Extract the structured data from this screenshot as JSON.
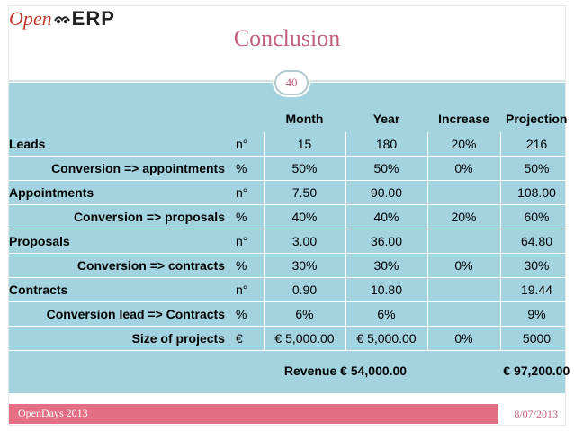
{
  "logo": {
    "open": "Open",
    "erp": "ERP"
  },
  "title": "Conclusion",
  "page_number": "40",
  "table": {
    "headers": [
      "",
      "",
      "Month",
      "Year",
      "Increase",
      "Projection"
    ],
    "rows": [
      {
        "label": "Leads",
        "unit": "n°",
        "month": "15",
        "year": "180",
        "increase": "20%",
        "projection": "216",
        "style": "main"
      },
      {
        "label": "Conversion => appointments",
        "unit": "%",
        "month": "50%",
        "year": "50%",
        "increase": "0%",
        "projection": "50%",
        "style": "sub"
      },
      {
        "label": "Appointments",
        "unit": "n°",
        "month": "7.50",
        "year": "90.00",
        "increase": "",
        "projection": "108.00",
        "style": "main"
      },
      {
        "label": "Conversion => proposals",
        "unit": "%",
        "month": "40%",
        "year": "40%",
        "increase": "20%",
        "projection": "60%",
        "style": "sub"
      },
      {
        "label": "Proposals",
        "unit": "n°",
        "month": "3.00",
        "year": "36.00",
        "increase": "",
        "projection": "64.80",
        "style": "main"
      },
      {
        "label": "Conversion => contracts",
        "unit": "%",
        "month": "30%",
        "year": "30%",
        "increase": "0%",
        "projection": "30%",
        "style": "sub"
      },
      {
        "label": "Contracts",
        "unit": "n°",
        "month": "0.90",
        "year": "10.80",
        "increase": "",
        "projection": "19.44",
        "style": "main"
      },
      {
        "label": "Conversion lead => Contracts",
        "unit": "%",
        "month": "6%",
        "year": "6%",
        "increase": "",
        "projection": "9%",
        "style": "sub"
      },
      {
        "label": "Size of projects",
        "unit": "€",
        "month": "€ 5,000.00",
        "year": "€ 5,000.00",
        "increase": "0%",
        "projection": "5000",
        "style": "sub"
      }
    ],
    "revenue": {
      "label": "Revenue € 54,000.00",
      "projection": "€ 97,200.00"
    }
  },
  "footer": {
    "left": "OpenDays 2013",
    "right": "8/07/2013"
  },
  "colors": {
    "accent": "#c0607a",
    "band": "#a3d3df",
    "footer": "#e46f84"
  }
}
